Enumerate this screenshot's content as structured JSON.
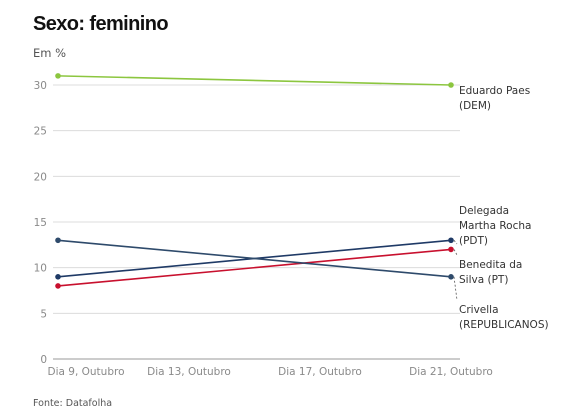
{
  "header": {
    "title": "Sexo: feminino",
    "unit": "Em %"
  },
  "footer": {
    "source": "Fonte: Datafolha"
  },
  "chart_data": {
    "type": "line",
    "x": [
      "Dia 9, Outubro",
      "Dia 13, Outubro",
      "Dia 17, Outubro",
      "Dia 21, Outubro"
    ],
    "ylim": [
      0,
      30
    ],
    "yticks": [
      0,
      5,
      10,
      15,
      20,
      25,
      30
    ],
    "grid": true,
    "series": [
      {
        "name": "Eduardo Paes (DEM)",
        "label_lines": [
          "Eduardo Paes",
          "(DEM)"
        ],
        "color": "#8cc63f",
        "points": [
          [
            "Dia 9, Outubro",
            31
          ],
          [
            "Dia 21, Outubro",
            30
          ]
        ]
      },
      {
        "name": "Delegada Martha Rocha (PDT)",
        "label_lines": [
          "Delegada",
          "Martha Rocha",
          "(PDT)"
        ],
        "color": "#1f3a66",
        "points": [
          [
            "Dia 9, Outubro",
            9
          ],
          [
            "Dia 21, Outubro",
            13
          ]
        ]
      },
      {
        "name": "Benedita da Silva (PT)",
        "label_lines": [
          "Benedita da",
          "Silva (PT)"
        ],
        "color": "#c8102e",
        "points": [
          [
            "Dia 9, Outubro",
            8
          ],
          [
            "Dia 21, Outubro",
            12
          ]
        ]
      },
      {
        "name": "Crivella (REPUBLICANOS)",
        "label_lines": [
          "Crivella",
          "(REPUBLICANOS)"
        ],
        "color": "#2e4a6b",
        "points": [
          [
            "Dia 9, Outubro",
            13
          ],
          [
            "Dia 21, Outubro",
            9
          ]
        ]
      }
    ]
  }
}
